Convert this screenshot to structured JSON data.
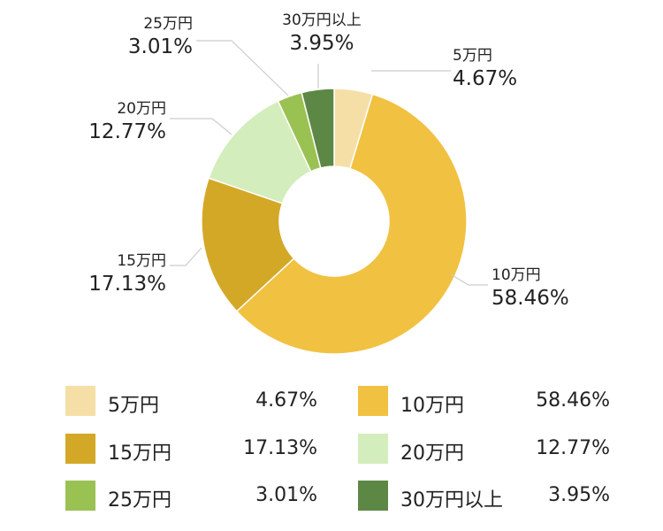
{
  "chart_data": {
    "type": "pie",
    "donut": true,
    "categories": [
      "5万円",
      "10万円",
      "15万円",
      "20万円",
      "25万円",
      "30万円以上"
    ],
    "values": [
      4.67,
      58.46,
      17.13,
      12.77,
      3.01,
      3.95
    ],
    "value_labels": [
      "4.67%",
      "58.46%",
      "17.13%",
      "12.77%",
      "3.01%",
      "3.95%"
    ],
    "colors": [
      "#f5dfa6",
      "#f1c141",
      "#d4a827",
      "#d4edbc",
      "#9ac253",
      "#5d8745"
    ],
    "legend_position": "bottom",
    "title": "",
    "start": "top",
    "direction": "clockwise"
  }
}
